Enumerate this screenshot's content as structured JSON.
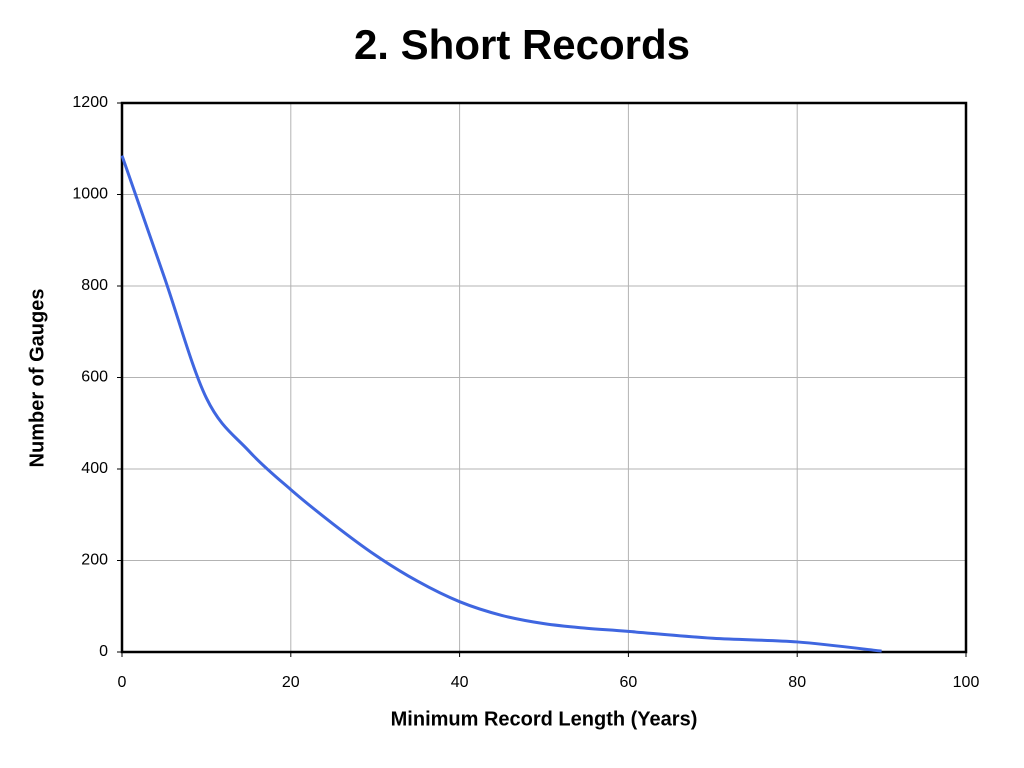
{
  "chart_data": {
    "type": "line",
    "title": "2. Short Records",
    "x_label": "Minimum Record Length (Years)",
    "y_label": "Number of Gauges",
    "x": [
      0,
      5,
      10,
      15,
      20,
      25,
      30,
      35,
      40,
      45,
      50,
      55,
      60,
      70,
      80,
      90
    ],
    "series": [
      {
        "name": "Number of Gauges",
        "color": "#3f66e0",
        "values": [
          1085,
          820,
          555,
          440,
          355,
          280,
          212,
          155,
          110,
          80,
          62,
          52,
          45,
          30,
          22,
          2
        ]
      }
    ],
    "xlim": [
      0,
      100
    ],
    "xticks": [
      0,
      20,
      40,
      60,
      80,
      100
    ],
    "ylim": [
      0,
      1200
    ],
    "yticks": [
      0,
      200,
      400,
      600,
      800,
      1000,
      1200
    ],
    "grid": true
  }
}
